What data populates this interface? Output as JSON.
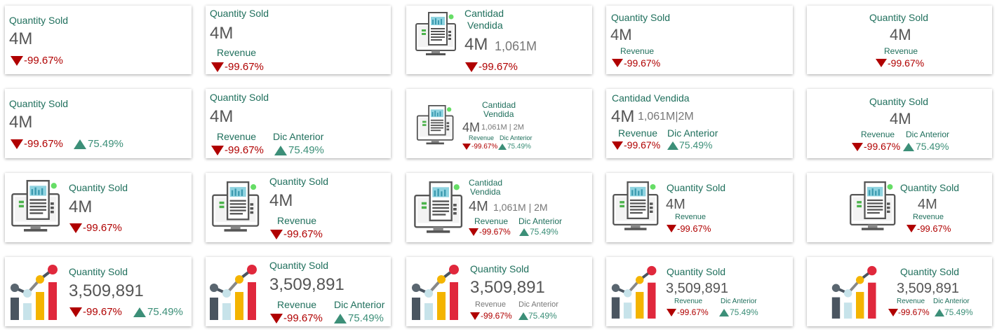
{
  "labels": {
    "qty_sold": "Quantity Sold",
    "cant_1": "Cantidad",
    "cant_2": "Vendida",
    "cant_full": "Cantidad  Vendida",
    "revenue": "Revenue",
    "dic": "Dic Anterior"
  },
  "values": {
    "v4m": "4M",
    "v1061": "1,061M",
    "v1061b": "1,061M|2M",
    "v1061c": "1,061M | 2M",
    "big": "3,509,891",
    "neg": "-99.67%",
    "pos": "75.49%"
  },
  "icons": {
    "monitor": "receipt-monitor-icon",
    "chart": "bar-chart-growth-icon",
    "down": "down-triangle-icon",
    "up": "up-triangle-icon"
  },
  "colors": {
    "title": "#1f6f5c",
    "negative": "#b00000",
    "positive": "#3c8f78",
    "value": "#555555"
  }
}
